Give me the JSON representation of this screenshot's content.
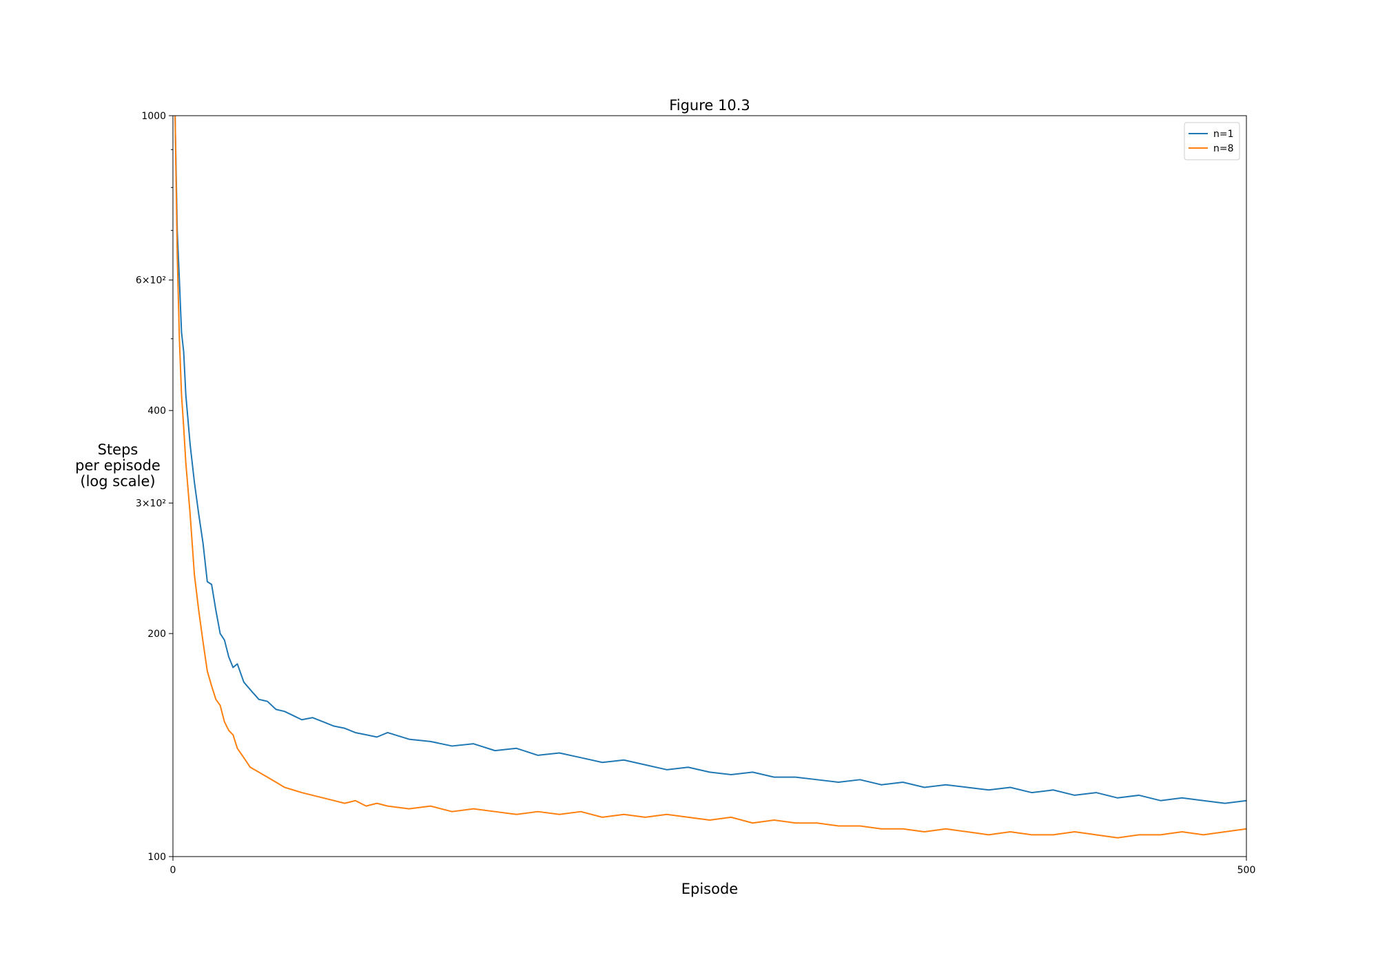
{
  "chart_data": {
    "type": "line",
    "title": "Figure 10.3",
    "xlabel": "Episode",
    "ylabel": [
      "Steps",
      "per episode",
      "(log scale)"
    ],
    "log_y": true,
    "legend": "upper right",
    "xlim": [
      0,
      500
    ],
    "xticks": [
      0,
      500
    ],
    "ylim": [
      100,
      1000
    ],
    "yticks": [
      100,
      200,
      {
        "value": 300,
        "label": "3×10²"
      },
      400,
      {
        "value": 600,
        "label": "6×10²"
      },
      1000
    ],
    "yminorticks": [
      500,
      700,
      800,
      900
    ],
    "x": [
      1,
      2,
      3,
      4,
      5,
      6,
      8,
      10,
      12,
      14,
      16,
      18,
      20,
      22,
      24,
      26,
      28,
      30,
      33,
      36,
      40,
      44,
      48,
      52,
      56,
      60,
      65,
      70,
      75,
      80,
      85,
      90,
      95,
      100,
      110,
      120,
      130,
      140,
      150,
      160,
      170,
      180,
      190,
      200,
      210,
      220,
      230,
      240,
      250,
      260,
      270,
      280,
      290,
      300,
      310,
      320,
      330,
      340,
      350,
      360,
      370,
      380,
      390,
      400,
      410,
      420,
      430,
      440,
      450,
      460,
      470,
      480,
      490,
      500
    ],
    "series": [
      {
        "name": "n=1",
        "color": "#1f77b4",
        "values": [
          1000,
          700,
          600,
          510,
          480,
          420,
          360,
          320,
          290,
          265,
          235,
          233,
          215,
          200,
          196,
          186,
          180,
          182,
          172,
          168,
          163,
          162,
          158,
          157,
          155,
          153,
          154,
          152,
          150,
          149,
          147,
          146,
          145,
          147,
          144,
          143,
          141,
          142,
          139,
          140,
          137,
          138,
          136,
          134,
          135,
          133,
          131,
          132,
          130,
          129,
          130,
          128,
          128,
          127,
          126,
          127,
          125,
          126,
          124,
          125,
          124,
          123,
          124,
          122,
          123,
          121,
          122,
          120,
          121,
          119,
          120,
          119,
          118,
          119
        ]
      },
      {
        "name": "n=8",
        "color": "#ff7f0e",
        "values": [
          1000,
          650,
          500,
          420,
          380,
          340,
          290,
          240,
          215,
          195,
          178,
          170,
          163,
          160,
          152,
          148,
          146,
          140,
          136,
          132,
          130,
          128,
          126,
          124,
          123,
          122,
          121,
          120,
          119,
          118,
          119,
          117,
          118,
          117,
          116,
          117,
          115,
          116,
          115,
          114,
          115,
          114,
          115,
          113,
          114,
          113,
          114,
          113,
          112,
          113,
          111,
          112,
          111,
          111,
          110,
          110,
          109,
          109,
          108,
          109,
          108,
          107,
          108,
          107,
          107,
          108,
          107,
          106,
          107,
          107,
          108,
          107,
          108,
          109
        ]
      }
    ]
  }
}
